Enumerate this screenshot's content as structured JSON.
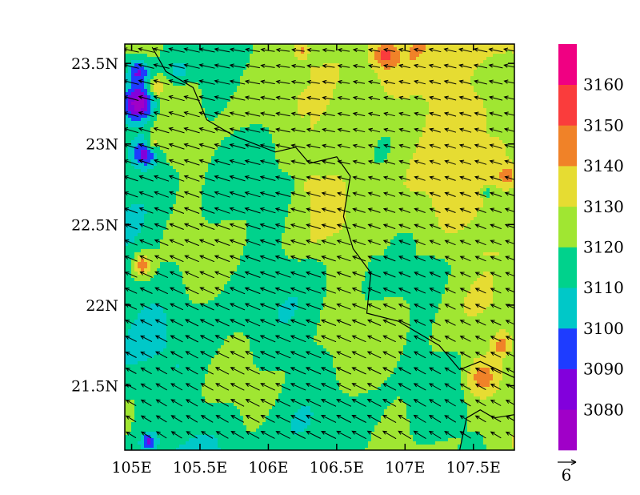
{
  "chart_data": {
    "type": "heatmap",
    "subtype": "filled-contour map with wind vector overlay",
    "xlim": [
      104.95,
      107.8
    ],
    "ylim": [
      21.1,
      23.62
    ],
    "x_ticks": [
      105.0,
      105.5,
      106.0,
      106.5,
      107.0,
      107.5
    ],
    "x_tick_labels": [
      "105E",
      "105.5E",
      "106E",
      "106.5E",
      "107E",
      "107.5E"
    ],
    "y_ticks": [
      21.5,
      22.0,
      22.5,
      23.0,
      23.5
    ],
    "y_tick_labels": [
      "21.5N",
      "22N",
      "22.5N",
      "23N",
      "23.5N"
    ],
    "colorbar": {
      "boundaries": [
        3070,
        3080,
        3090,
        3100,
        3110,
        3120,
        3130,
        3140,
        3150,
        3160,
        3170
      ],
      "labels": [
        "3080",
        "3090",
        "3100",
        "3110",
        "3120",
        "3130",
        "3140",
        "3150",
        "3160"
      ],
      "colors": [
        "#a000c8",
        "#8200dc",
        "#1e3cff",
        "#00c8c8",
        "#00d28c",
        "#a0e632",
        "#e6dc32",
        "#f08228",
        "#fa3c3c",
        "#f00082"
      ]
    },
    "dominant_value_range": [
      3110,
      3130
    ],
    "vector_reference": {
      "label": "6"
    },
    "wind_direction": "predominantly from the east-southeast (arrows point west-northwest)",
    "coastline_border": "present (black lines across the map)"
  }
}
